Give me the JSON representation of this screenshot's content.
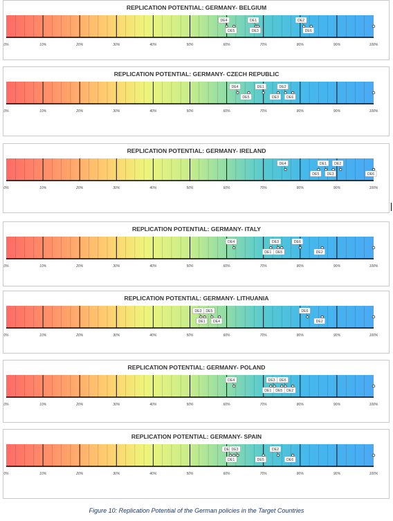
{
  "chart_data": [
    {
      "type": "scatter",
      "title": "REPLICATION POTENTIAL: GERMANY- BELGIUM",
      "ticks": [
        "0%",
        "10%",
        "20%",
        "30%",
        "40%",
        "50%",
        "60%",
        "70%",
        "80%",
        "90%",
        "100%"
      ],
      "xlim": [
        0,
        100
      ],
      "points": [
        {
          "label": "DE4",
          "value": 60
        },
        {
          "label": "DE5",
          "value": 62
        },
        {
          "label": "DE1",
          "value": 68
        },
        {
          "label": "DE3",
          "value": 68.5
        },
        {
          "label": "DE2",
          "value": 81
        },
        {
          "label": "DE6",
          "value": 83
        }
      ]
    },
    {
      "type": "scatter",
      "title": "REPLICATION POTENTIAL: GERMANY- CZECH REPUBLIC",
      "ticks": [
        "0%",
        "10%",
        "20%",
        "30%",
        "40%",
        "50%",
        "60%",
        "70%",
        "80%",
        "90%",
        "100%"
      ],
      "xlim": [
        0,
        100
      ],
      "points": [
        {
          "label": "DE4",
          "value": 63
        },
        {
          "label": "DE5",
          "value": 66
        },
        {
          "label": "DE1",
          "value": 70
        },
        {
          "label": "DE3",
          "value": 74
        },
        {
          "label": "DE2",
          "value": 76
        },
        {
          "label": "DE6",
          "value": 78
        }
      ]
    },
    {
      "type": "scatter",
      "title": "REPLICATION POTENTIAL: GERMANY- IRELAND",
      "ticks": [
        "0%",
        "10%",
        "20%",
        "30%",
        "40%",
        "50%",
        "60%",
        "70%",
        "80%",
        "90%",
        "100%"
      ],
      "xlim": [
        0,
        100
      ],
      "points": [
        {
          "label": "DE4",
          "value": 76
        },
        {
          "label": "DE5",
          "value": 85
        },
        {
          "label": "DE1",
          "value": 87
        },
        {
          "label": "DE3",
          "value": 89
        },
        {
          "label": "DE2",
          "value": 91
        },
        {
          "label": "DE6",
          "value": 100
        }
      ]
    },
    {
      "type": "scatter",
      "title": "REPLICATION POTENTIAL: GERMANY- ITALY",
      "ticks": [
        "0%",
        "10%",
        "20%",
        "30%",
        "40%",
        "50%",
        "60%",
        "70%",
        "80%",
        "90%",
        "100%"
      ],
      "xlim": [
        0,
        100
      ],
      "points": [
        {
          "label": "DE4",
          "value": 62
        },
        {
          "label": "DE1",
          "value": 72
        },
        {
          "label": "DE3",
          "value": 74
        },
        {
          "label": "DE5",
          "value": 75
        },
        {
          "label": "DE6",
          "value": 80
        },
        {
          "label": "DE2",
          "value": 86
        }
      ]
    },
    {
      "type": "scatter",
      "title": "REPLICATION POTENTIAL: GERMANY- LITHUANIA",
      "ticks": [
        "0%",
        "10%",
        "20%",
        "30%",
        "40%",
        "50%",
        "60%",
        "70%",
        "80%",
        "90%",
        "100%"
      ],
      "xlim": [
        0,
        100
      ],
      "points": [
        {
          "label": "DE1",
          "value": 54
        },
        {
          "label": "DE3",
          "value": 53
        },
        {
          "label": "DE5",
          "value": 56
        },
        {
          "label": "DE4",
          "value": 58
        },
        {
          "label": "DE6",
          "value": 82
        },
        {
          "label": "DE2",
          "value": 86
        }
      ]
    },
    {
      "type": "scatter",
      "title": "REPLICATION POTENTIAL: GERMANY- POLAND",
      "ticks": [
        "0%",
        "10%",
        "20%",
        "30%",
        "40%",
        "50%",
        "60%",
        "70%",
        "80%",
        "90%",
        "100%"
      ],
      "xlim": [
        0,
        100
      ],
      "points": [
        {
          "label": "DE4",
          "value": 62
        },
        {
          "label": "DE1",
          "value": 72
        },
        {
          "label": "DE3",
          "value": 73
        },
        {
          "label": "DE5",
          "value": 75
        },
        {
          "label": "DE6",
          "value": 76
        },
        {
          "label": "DE2",
          "value": 78
        }
      ]
    },
    {
      "type": "scatter",
      "title": "REPLICATION POTENTIAL: GERMANY- SPAIN",
      "ticks": [
        "0%",
        "10%",
        "20%",
        "30%",
        "40%",
        "50%",
        "60%",
        "70%",
        "80%",
        "90%",
        "100%"
      ],
      "xlim": [
        0,
        100
      ],
      "points": [
        {
          "label": "DE4",
          "value": 61
        },
        {
          "label": "DE1",
          "value": 62
        },
        {
          "label": "DE3",
          "value": 63
        },
        {
          "label": "DE5",
          "value": 70
        },
        {
          "label": "DE2",
          "value": 74
        },
        {
          "label": "DE6",
          "value": 78
        }
      ]
    }
  ],
  "caption": "Figure 10: Replication Potential of the German policies in the Target Countries"
}
